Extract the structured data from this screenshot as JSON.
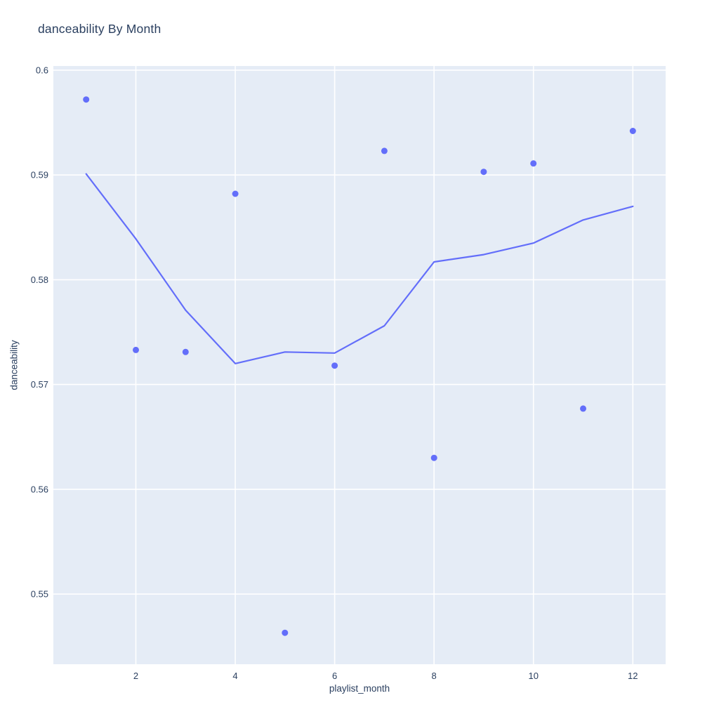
{
  "page": {
    "background": "#ffffff"
  },
  "chart_data": {
    "type": "scatter",
    "title": "danceability By Month",
    "xlabel": "playlist_month",
    "ylabel": "danceability",
    "x": [
      1,
      2,
      3,
      4,
      5,
      6,
      7,
      8,
      9,
      10,
      11,
      12
    ],
    "series": [
      {
        "name": "monthly danceability points",
        "type": "scatter",
        "values": [
          0.5972,
          0.5733,
          0.5731,
          0.5882,
          0.5463,
          0.5718,
          0.5923,
          0.563,
          0.5903,
          0.5911,
          0.5677,
          0.5942
        ]
      },
      {
        "name": "trend line",
        "type": "line",
        "values": [
          0.5901,
          0.5839,
          0.5771,
          0.572,
          0.5731,
          0.573,
          0.5756,
          0.5817,
          0.5824,
          0.5835,
          0.5857,
          0.587
        ]
      }
    ],
    "xlim": [
      0.34,
      12.66
    ],
    "ylim": [
      0.5433,
      0.6004
    ],
    "xticks": [
      2,
      4,
      6,
      8,
      10,
      12
    ],
    "xtick_labels": [
      "2",
      "4",
      "6",
      "8",
      "10",
      "12"
    ],
    "yticks": [
      0.55,
      0.56,
      0.57,
      0.58,
      0.59,
      0.6
    ],
    "ytick_labels": [
      "0.55",
      "0.56",
      "0.57",
      "0.58",
      "0.59",
      "0.6"
    ],
    "grid": true,
    "legend": false,
    "colors": {
      "marker": "#636efa",
      "line": "#636efa",
      "plot_background": "#e5ecf6",
      "gridline": "#ffffff",
      "text": "#2a3f5f"
    }
  }
}
